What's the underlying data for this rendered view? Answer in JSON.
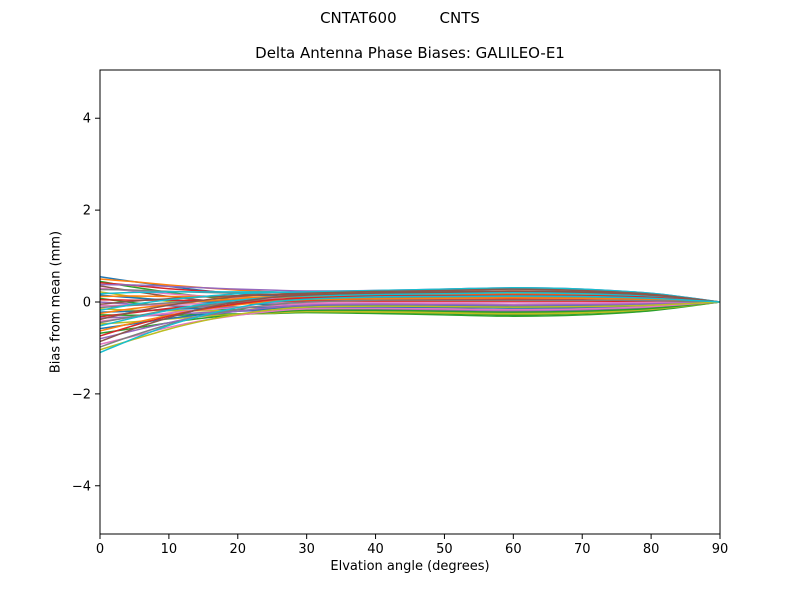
{
  "header": {
    "suptitle": "CNTAT600         CNTS"
  },
  "chart_data": {
    "type": "line",
    "title": "Delta Antenna Phase Biases: GALILEO-E1",
    "xlabel": "Elvation angle (degrees)",
    "ylabel": "Bias from mean (mm)",
    "xlim": [
      0,
      90
    ],
    "ylim": [
      -5.05,
      5.05
    ],
    "xticks": [
      0,
      10,
      20,
      30,
      40,
      50,
      60,
      70,
      80,
      90
    ],
    "yticks": [
      -4,
      -2,
      0,
      2,
      4
    ],
    "yticklabels": [
      "−4",
      "−2",
      "0",
      "2",
      "4"
    ],
    "grid": false,
    "legend": false,
    "line_width": 1.5,
    "axis_color": "#000000",
    "background_color": "#ffffff",
    "palette": [
      "#1f77b4",
      "#ff7f0e",
      "#2ca02c",
      "#d62728",
      "#9467bd",
      "#8c564b",
      "#e377c2",
      "#7f7f7f",
      "#bcbd22",
      "#17becf"
    ],
    "x": [
      0,
      5,
      10,
      15,
      20,
      25,
      30,
      40,
      50,
      60,
      70,
      80,
      90
    ],
    "series": [
      {
        "color": "#1f77b4",
        "y": [
          0.55,
          0.44,
          0.34,
          0.25,
          0.18,
          0.13,
          0.1,
          0.09,
          0.1,
          0.11,
          0.1,
          0.07,
          0
        ]
      },
      {
        "color": "#ff7f0e",
        "y": [
          0.5,
          0.44,
          0.37,
          0.31,
          0.26,
          0.22,
          0.19,
          0.2,
          0.22,
          0.24,
          0.22,
          0.15,
          0
        ]
      },
      {
        "color": "#2ca02c",
        "y": [
          0.45,
          0.32,
          0.21,
          0.12,
          0.05,
          0.0,
          -0.03,
          -0.05,
          -0.05,
          -0.06,
          -0.05,
          -0.03,
          0
        ]
      },
      {
        "color": "#d62728",
        "y": [
          0.42,
          0.36,
          0.29,
          0.24,
          0.19,
          0.16,
          0.13,
          0.14,
          0.15,
          0.17,
          0.15,
          0.1,
          0
        ]
      },
      {
        "color": "#9467bd",
        "y": [
          0.38,
          0.37,
          0.34,
          0.31,
          0.28,
          0.26,
          0.24,
          0.25,
          0.28,
          0.31,
          0.28,
          0.19,
          0
        ]
      },
      {
        "color": "#8c564b",
        "y": [
          0.35,
          0.23,
          0.12,
          0.04,
          -0.02,
          -0.06,
          -0.09,
          -0.11,
          -0.12,
          -0.13,
          -0.12,
          -0.08,
          0
        ]
      },
      {
        "color": "#e377c2",
        "y": [
          0.3,
          0.24,
          0.18,
          0.13,
          0.09,
          0.07,
          0.05,
          0.05,
          0.05,
          0.06,
          0.05,
          0.03,
          0
        ]
      },
      {
        "color": "#7f7f7f",
        "y": [
          0.27,
          0.26,
          0.23,
          0.21,
          0.19,
          0.17,
          0.15,
          0.16,
          0.18,
          0.2,
          0.18,
          0.12,
          0
        ]
      },
      {
        "color": "#bcbd22",
        "y": [
          0.22,
          0.11,
          0.01,
          -0.06,
          -0.11,
          -0.14,
          -0.15,
          -0.18,
          -0.2,
          -0.22,
          -0.2,
          -0.14,
          0
        ]
      },
      {
        "color": "#17becf",
        "y": [
          0.18,
          0.21,
          0.22,
          0.22,
          0.22,
          0.22,
          0.21,
          0.23,
          0.25,
          0.28,
          0.25,
          0.17,
          0
        ]
      },
      {
        "color": "#1f77b4",
        "y": [
          0.15,
          0.09,
          0.04,
          0.0,
          -0.03,
          -0.05,
          -0.06,
          -0.07,
          -0.08,
          -0.09,
          -0.08,
          -0.05,
          0
        ]
      },
      {
        "color": "#ff7f0e",
        "y": [
          0.12,
          0.13,
          0.12,
          0.12,
          0.11,
          0.11,
          0.1,
          0.11,
          0.12,
          0.13,
          0.12,
          0.08,
          0
        ]
      },
      {
        "color": "#2ca02c",
        "y": [
          0.08,
          -0.02,
          -0.08,
          -0.14,
          -0.17,
          -0.19,
          -0.2,
          -0.23,
          -0.25,
          -0.28,
          -0.25,
          -0.17,
          0
        ]
      },
      {
        "color": "#d62728",
        "y": [
          0.05,
          0.04,
          0.04,
          0.03,
          0.02,
          0.02,
          0.02,
          0.02,
          0.02,
          0.02,
          0.02,
          0.01,
          0
        ]
      },
      {
        "color": "#9467bd",
        "y": [
          0.0,
          -0.05,
          -0.08,
          -0.1,
          -0.11,
          -0.12,
          -0.12,
          -0.14,
          -0.15,
          -0.17,
          -0.15,
          -0.1,
          0
        ]
      },
      {
        "color": "#8c564b",
        "y": [
          -0.05,
          0.02,
          0.07,
          0.11,
          0.14,
          0.16,
          0.16,
          0.18,
          0.2,
          0.22,
          0.2,
          0.14,
          0
        ]
      },
      {
        "color": "#e377c2",
        "y": [
          -0.08,
          -0.07,
          -0.05,
          -0.04,
          -0.03,
          -0.02,
          -0.02,
          -0.02,
          -0.02,
          -0.02,
          -0.02,
          -0.01,
          0
        ]
      },
      {
        "color": "#7f7f7f",
        "y": [
          -0.12,
          -0.07,
          -0.02,
          0.01,
          0.04,
          0.05,
          0.06,
          0.07,
          0.08,
          0.09,
          0.08,
          0.05,
          0
        ]
      },
      {
        "color": "#bcbd22",
        "y": [
          -0.15,
          -0.18,
          -0.19,
          -0.19,
          -0.19,
          -0.19,
          -0.18,
          -0.2,
          -0.22,
          -0.24,
          -0.22,
          -0.15,
          0
        ]
      },
      {
        "color": "#17becf",
        "y": [
          -0.18,
          -0.05,
          0.05,
          0.12,
          0.18,
          0.21,
          0.22,
          0.25,
          0.28,
          0.31,
          0.28,
          0.19,
          0
        ]
      },
      {
        "color": "#1f77b4",
        "y": [
          -0.22,
          -0.2,
          -0.16,
          -0.14,
          -0.12,
          -0.1,
          -0.09,
          -0.09,
          -0.1,
          -0.11,
          -0.1,
          -0.07,
          0
        ]
      },
      {
        "color": "#ff7f0e",
        "y": [
          -0.25,
          -0.14,
          -0.06,
          0.02,
          0.07,
          0.1,
          0.11,
          0.14,
          0.15,
          0.17,
          0.15,
          0.1,
          0
        ]
      },
      {
        "color": "#2ca02c",
        "y": [
          -0.28,
          -0.29,
          -0.29,
          -0.27,
          -0.26,
          -0.25,
          -0.23,
          -0.25,
          -0.28,
          -0.31,
          -0.28,
          -0.19,
          0
        ]
      },
      {
        "color": "#d62728",
        "y": [
          -0.32,
          -0.23,
          -0.14,
          -0.07,
          -0.02,
          0.01,
          0.03,
          0.05,
          0.05,
          0.06,
          0.05,
          0.03,
          0
        ]
      },
      {
        "color": "#9467bd",
        "y": [
          -0.35,
          -0.32,
          -0.27,
          -0.23,
          -0.2,
          -0.18,
          -0.15,
          -0.16,
          -0.18,
          -0.2,
          -0.18,
          -0.12,
          0
        ]
      },
      {
        "color": "#8c564b",
        "y": [
          -0.38,
          -0.21,
          -0.07,
          0.04,
          0.12,
          0.17,
          0.19,
          0.23,
          0.25,
          0.28,
          0.25,
          0.17,
          0
        ]
      },
      {
        "color": "#e377c2",
        "y": [
          -0.42,
          -0.33,
          -0.24,
          -0.17,
          -0.12,
          -0.08,
          -0.05,
          -0.05,
          -0.05,
          -0.06,
          -0.05,
          -0.03,
          0
        ]
      },
      {
        "color": "#7f7f7f",
        "y": [
          -0.45,
          -0.31,
          -0.18,
          -0.08,
          -0.01,
          0.04,
          0.07,
          0.09,
          0.1,
          0.11,
          0.1,
          0.07,
          0
        ]
      },
      {
        "color": "#bcbd22",
        "y": [
          -0.48,
          -0.43,
          -0.37,
          -0.31,
          -0.27,
          -0.24,
          -0.21,
          -0.22,
          -0.24,
          -0.26,
          -0.24,
          -0.16,
          0
        ]
      },
      {
        "color": "#17becf",
        "y": [
          -0.52,
          -0.34,
          -0.18,
          -0.05,
          0.04,
          0.1,
          0.13,
          0.16,
          0.18,
          0.2,
          0.18,
          0.12,
          0
        ]
      },
      {
        "color": "#1f77b4",
        "y": [
          -0.58,
          -0.47,
          -0.36,
          -0.27,
          -0.2,
          -0.15,
          -0.11,
          -0.11,
          -0.12,
          -0.13,
          -0.12,
          -0.08,
          0
        ]
      },
      {
        "color": "#ff7f0e",
        "y": [
          -0.63,
          -0.45,
          -0.29,
          -0.16,
          -0.06,
          0.01,
          0.05,
          0.07,
          0.08,
          0.09,
          0.08,
          0.05,
          0
        ]
      },
      {
        "color": "#2ca02c",
        "y": [
          -0.68,
          -0.57,
          -0.45,
          -0.35,
          -0.28,
          -0.22,
          -0.18,
          -0.18,
          -0.2,
          -0.22,
          -0.2,
          -0.14,
          0
        ]
      },
      {
        "color": "#d62728",
        "y": [
          -0.74,
          -0.51,
          -0.31,
          -0.15,
          -0.04,
          0.05,
          0.09,
          0.13,
          0.14,
          0.15,
          0.14,
          0.1,
          0
        ]
      },
      {
        "color": "#9467bd",
        "y": [
          -0.8,
          -0.62,
          -0.45,
          -0.3,
          -0.2,
          -0.12,
          -0.07,
          -0.05,
          -0.06,
          -0.07,
          -0.06,
          -0.04,
          0
        ]
      },
      {
        "color": "#8c564b",
        "y": [
          -0.86,
          -0.58,
          -0.34,
          -0.14,
          0.0,
          0.1,
          0.15,
          0.2,
          0.22,
          0.24,
          0.22,
          0.15,
          0
        ]
      },
      {
        "color": "#e377c2",
        "y": [
          -0.92,
          -0.74,
          -0.55,
          -0.4,
          -0.29,
          -0.2,
          -0.15,
          -0.14,
          -0.15,
          -0.17,
          -0.15,
          -0.1,
          0
        ]
      },
      {
        "color": "#7f7f7f",
        "y": [
          -0.98,
          -0.72,
          -0.49,
          -0.3,
          -0.16,
          -0.06,
          0.0,
          0.04,
          0.04,
          0.04,
          0.04,
          0.03,
          0
        ]
      },
      {
        "color": "#bcbd22",
        "y": [
          -1.04,
          -0.81,
          -0.59,
          -0.41,
          -0.27,
          -0.17,
          -0.11,
          -0.09,
          -0.1,
          -0.11,
          -0.1,
          -0.07,
          0
        ]
      },
      {
        "color": "#17becf",
        "y": [
          -1.1,
          -0.79,
          -0.51,
          -0.29,
          -0.12,
          0.0,
          0.06,
          0.11,
          0.12,
          0.13,
          0.12,
          0.08,
          0
        ]
      }
    ]
  }
}
